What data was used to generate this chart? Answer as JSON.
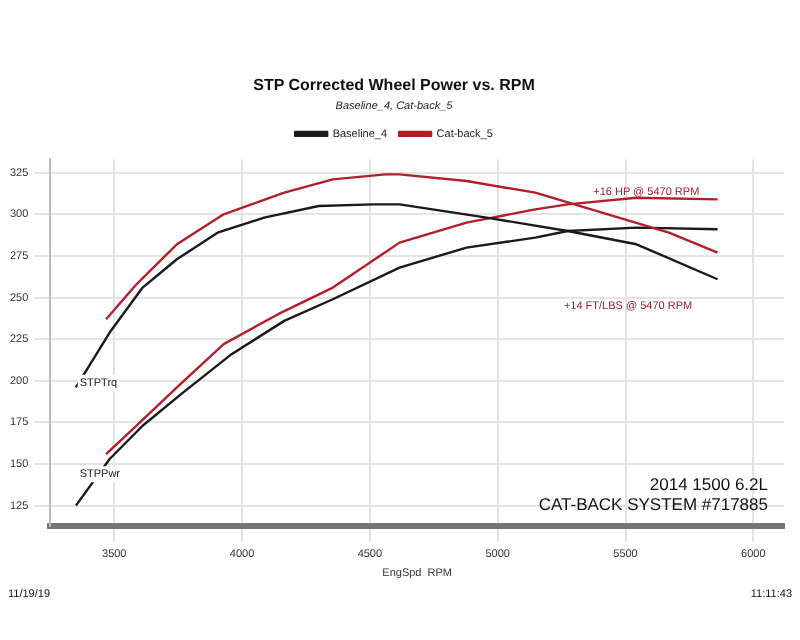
{
  "chart_data": {
    "type": "line",
    "title": "STP Corrected Wheel Power vs. RPM",
    "subtitle": "Baseline_4, Cat-back_5",
    "xlabel": "EngSpd  RPM",
    "xlim": [
      3250,
      6120
    ],
    "xticks": [
      3500,
      4000,
      4500,
      5000,
      5500,
      6000
    ],
    "ylim": [
      113,
      333
    ],
    "yticks": [
      125,
      150,
      175,
      200,
      225,
      250,
      275,
      300,
      325
    ],
    "grid": true,
    "legend": "top",
    "marker": "none",
    "line_style": "solid",
    "series": [
      {
        "name": "Baseline_4",
        "color": "#1a1a1a",
        "x": [
          3350,
          3482,
          3611,
          3745,
          3904,
          4086,
          4300,
          4513,
          4616,
          4957,
          5274,
          5543,
          5860
        ],
        "values": [
          196,
          229,
          256,
          273,
          289,
          298,
          305,
          306,
          306,
          298,
          290,
          282,
          261
        ]
      },
      {
        "name": "Cat-back_5",
        "color": "#b0202a",
        "x": [
          3468,
          3587,
          3745,
          3928,
          4165,
          4355,
          4561,
          4616,
          4878,
          5147,
          5408,
          5670,
          5860
        ],
        "values": [
          237,
          258,
          282,
          300,
          313,
          321,
          324,
          324,
          320,
          313,
          301,
          289,
          277
        ]
      },
      {
        "color": "#1a1a1a",
        "x": [
          3350,
          3482,
          3611,
          3770,
          3959,
          4165,
          4355,
          4616,
          4878,
          5147,
          5274,
          5543,
          5860
        ],
        "values": [
          125,
          153,
          173,
          193,
          216,
          236,
          249,
          268,
          280,
          286,
          290,
          292,
          291
        ]
      },
      {
        "color": "#b0202a",
        "x": [
          3468,
          3587,
          3745,
          3928,
          4141,
          4355,
          4616,
          4878,
          5147,
          5274,
          5543,
          5860
        ],
        "values": [
          156,
          173,
          196,
          222,
          240,
          256,
          283,
          295,
          303,
          306,
          310,
          309
        ]
      }
    ],
    "annotations": [
      "+16 HP @ 5470 RPM",
      "+14 FT/LBS @ 5470 RPM",
      "STPTrq",
      "STPPwr",
      "2014 1500 6.2L",
      "CAT-BACK SYSTEM #717885",
      "11/19/19",
      "11:11:43"
    ]
  }
}
